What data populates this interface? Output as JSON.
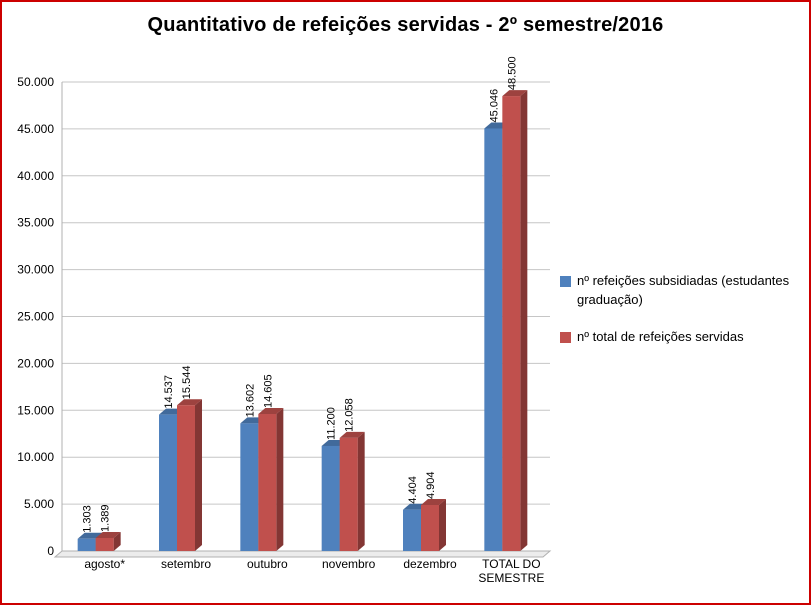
{
  "frame": {
    "border_color": "#cc0000",
    "background": "#ffffff"
  },
  "chart_data": {
    "type": "bar",
    "style": "3d-clustered-column",
    "title": "Quantitativo de refeições servidas - 2º semestre/2016",
    "categories": [
      "agosto*",
      "setembro",
      "outubro",
      "novembro",
      "dezembro",
      "TOTAL DO\nSEMESTRE"
    ],
    "series": [
      {
        "name": "nº refeições subsidiadas (estudantes graduação)",
        "color": "#4F81BD",
        "values": [
          1303,
          14537,
          13602,
          11200,
          4404,
          45046
        ],
        "labels": [
          "1.303",
          "14.537",
          "13.602",
          "11.200",
          "4.404",
          "45.046"
        ]
      },
      {
        "name": "nº total de refeições servidas",
        "color": "#C0504D",
        "values": [
          1389,
          15544,
          14605,
          12058,
          4904,
          48500
        ],
        "labels": [
          "1.389",
          "15.544",
          "14.605",
          "12.058",
          "4.904",
          "48.500"
        ]
      }
    ],
    "ylim": [
      0,
      50000
    ],
    "y_tick_step": 5000,
    "y_tick_labels": [
      "0",
      "5.000",
      "10.000",
      "15.000",
      "20.000",
      "25.000",
      "30.000",
      "35.000",
      "40.000",
      "45.000",
      "50.000"
    ],
    "grid": true,
    "legend_position": "right",
    "axis_color": "#b0b0b0",
    "gridline_color": "#c6c6c6",
    "floor_color": "#ececec"
  }
}
